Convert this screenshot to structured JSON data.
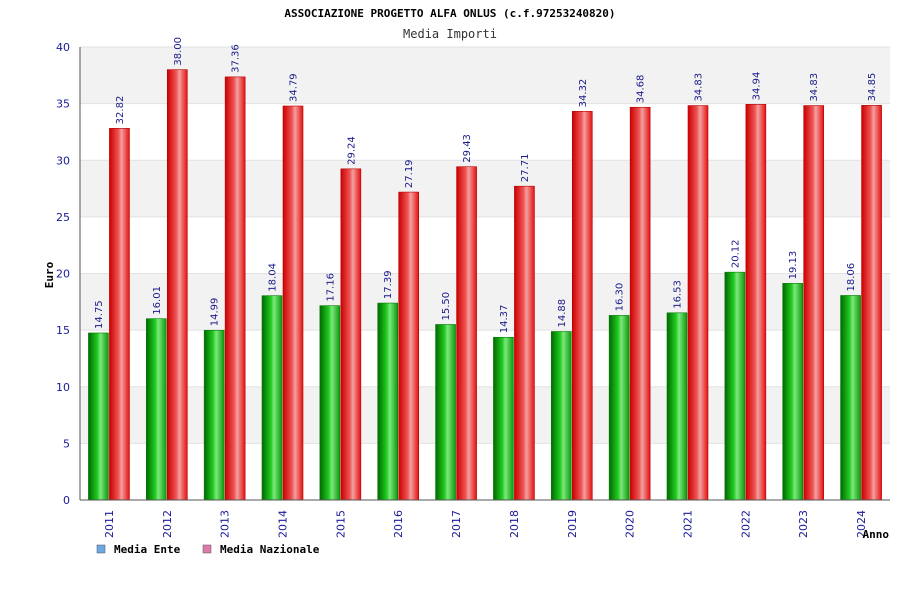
{
  "chart_data": {
    "type": "bar",
    "title": "ASSOCIAZIONE PROGETTO ALFA ONLUS (c.f.97253240820)",
    "subtitle": "Media Importi",
    "ylabel": "Euro",
    "xlabel": "Anno",
    "ylim": [
      0,
      40
    ],
    "yticks": [
      "0",
      "5",
      "10",
      "15",
      "20",
      "25",
      "30",
      "35",
      "40"
    ],
    "categories": [
      "2011",
      "2012",
      "2013",
      "2014",
      "2015",
      "2016",
      "2017",
      "2018",
      "2019",
      "2020",
      "2021",
      "2022",
      "2023",
      "2024"
    ],
    "series": [
      {
        "name": "Media Ente",
        "values": [
          14.75,
          16.01,
          14.99,
          18.04,
          17.16,
          17.39,
          15.5,
          14.37,
          14.88,
          16.3,
          16.53,
          20.12,
          19.13,
          18.06
        ],
        "labels": [
          "14.75",
          "16.01",
          "14.99",
          "18.04",
          "17.16",
          "17.39",
          "15.50",
          "14.37",
          "14.88",
          "16.30",
          "16.53",
          "20.12",
          "19.13",
          "18.06"
        ],
        "bar_color": "#19b319",
        "legend_color": "#6aa8e8"
      },
      {
        "name": "Media Nazionale",
        "values": [
          32.82,
          38.0,
          37.36,
          34.79,
          29.24,
          27.19,
          29.43,
          27.71,
          34.32,
          34.68,
          34.83,
          34.94,
          34.83,
          34.85
        ],
        "labels": [
          "32.82",
          "38.00",
          "37.36",
          "34.79",
          "29.24",
          "27.19",
          "29.43",
          "27.71",
          "34.32",
          "34.68",
          "34.83",
          "34.94",
          "34.83",
          "34.85"
        ],
        "bar_color": "#e8202a",
        "legend_color": "#e07aa8"
      }
    ],
    "grid": true,
    "legend": "bottom-left"
  }
}
